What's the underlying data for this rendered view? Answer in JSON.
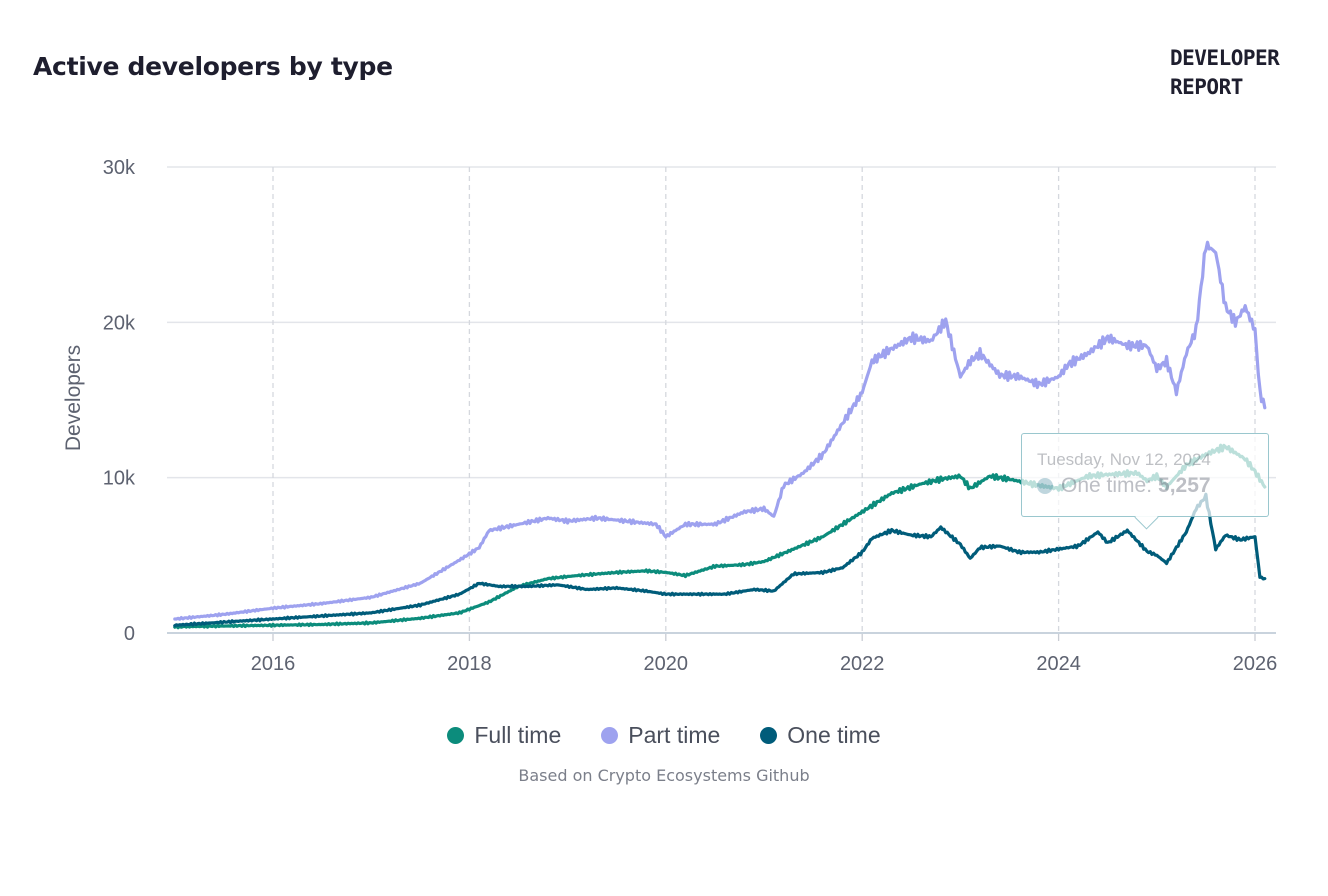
{
  "header": {
    "title": "Active developers by type",
    "brand_line1": "DEVELOPER",
    "brand_line2": "REPORT"
  },
  "footer": {
    "source": "Based on Crypto Ecosystems Github"
  },
  "tooltip": {
    "date": "Tuesday, Nov 12, 2024",
    "series": "One time:",
    "value": "5,257"
  },
  "chart_data": {
    "type": "line",
    "title": "Active developers by type",
    "xlabel": "",
    "ylabel": "Developers",
    "xlim": [
      2015.0,
      2026.1
    ],
    "ylim": [
      0,
      30000
    ],
    "x_ticks": [
      2016,
      2018,
      2020,
      2022,
      2024,
      2026
    ],
    "x_tick_labels": [
      "2016",
      "2018",
      "2020",
      "2022",
      "2024",
      "2026"
    ],
    "y_ticks": [
      0,
      10000,
      20000,
      30000
    ],
    "y_tick_labels": [
      "0",
      "10k",
      "20k",
      "30k"
    ],
    "grid": true,
    "legend_position": "bottom-center",
    "series": [
      {
        "name": "Full time",
        "color": "#0c8c7c",
        "points": [
          [
            2015.0,
            400
          ],
          [
            2015.5,
            450
          ],
          [
            2016.0,
            500
          ],
          [
            2016.5,
            550
          ],
          [
            2017.0,
            650
          ],
          [
            2017.5,
            950
          ],
          [
            2017.9,
            1300
          ],
          [
            2018.2,
            2000
          ],
          [
            2018.5,
            3000
          ],
          [
            2018.8,
            3500
          ],
          [
            2019.1,
            3700
          ],
          [
            2019.5,
            3900
          ],
          [
            2019.8,
            4000
          ],
          [
            2020.0,
            3900
          ],
          [
            2020.2,
            3700
          ],
          [
            2020.5,
            4300
          ],
          [
            2020.8,
            4400
          ],
          [
            2021.0,
            4600
          ],
          [
            2021.3,
            5400
          ],
          [
            2021.6,
            6200
          ],
          [
            2021.9,
            7400
          ],
          [
            2022.1,
            8200
          ],
          [
            2022.3,
            9000
          ],
          [
            2022.6,
            9600
          ],
          [
            2022.8,
            9900
          ],
          [
            2023.0,
            10100
          ],
          [
            2023.1,
            9300
          ],
          [
            2023.3,
            10100
          ],
          [
            2023.5,
            9900
          ],
          [
            2023.8,
            9500
          ],
          [
            2024.0,
            9300
          ],
          [
            2024.3,
            10100
          ],
          [
            2024.5,
            10200
          ],
          [
            2024.8,
            10300
          ],
          [
            2024.9,
            9800
          ],
          [
            2025.0,
            10100
          ],
          [
            2025.1,
            9400
          ],
          [
            2025.3,
            10800
          ],
          [
            2025.5,
            11500
          ],
          [
            2025.7,
            12000
          ],
          [
            2025.9,
            11200
          ],
          [
            2026.0,
            10400
          ],
          [
            2026.1,
            9400
          ]
        ]
      },
      {
        "name": "Part time",
        "color": "#9ea2ef",
        "points": [
          [
            2015.0,
            900
          ],
          [
            2015.5,
            1200
          ],
          [
            2016.0,
            1600
          ],
          [
            2016.5,
            1900
          ],
          [
            2017.0,
            2300
          ],
          [
            2017.5,
            3200
          ],
          [
            2017.9,
            4700
          ],
          [
            2018.1,
            5500
          ],
          [
            2018.2,
            6600
          ],
          [
            2018.5,
            7000
          ],
          [
            2018.8,
            7400
          ],
          [
            2019.0,
            7200
          ],
          [
            2019.3,
            7400
          ],
          [
            2019.6,
            7200
          ],
          [
            2019.9,
            7000
          ],
          [
            2020.0,
            6200
          ],
          [
            2020.2,
            7000
          ],
          [
            2020.5,
            7000
          ],
          [
            2020.8,
            7800
          ],
          [
            2021.0,
            8000
          ],
          [
            2021.1,
            7500
          ],
          [
            2021.2,
            9500
          ],
          [
            2021.4,
            10300
          ],
          [
            2021.6,
            11500
          ],
          [
            2021.8,
            13500
          ],
          [
            2022.0,
            15500
          ],
          [
            2022.1,
            17500
          ],
          [
            2022.3,
            18300
          ],
          [
            2022.5,
            19000
          ],
          [
            2022.7,
            18800
          ],
          [
            2022.85,
            20100
          ],
          [
            2023.0,
            16500
          ],
          [
            2023.1,
            17500
          ],
          [
            2023.2,
            18000
          ],
          [
            2023.4,
            16600
          ],
          [
            2023.6,
            16500
          ],
          [
            2023.8,
            16000
          ],
          [
            2024.0,
            16500
          ],
          [
            2024.1,
            17300
          ],
          [
            2024.3,
            18000
          ],
          [
            2024.5,
            19000
          ],
          [
            2024.7,
            18500
          ],
          [
            2024.9,
            18500
          ],
          [
            2025.0,
            17000
          ],
          [
            2025.1,
            17500
          ],
          [
            2025.2,
            15500
          ],
          [
            2025.3,
            18000
          ],
          [
            2025.4,
            19500
          ],
          [
            2025.5,
            25000
          ],
          [
            2025.6,
            24500
          ],
          [
            2025.7,
            21000
          ],
          [
            2025.8,
            20000
          ],
          [
            2025.9,
            21000
          ],
          [
            2026.0,
            19500
          ],
          [
            2026.05,
            15500
          ],
          [
            2026.1,
            14500
          ]
        ]
      },
      {
        "name": "One time",
        "color": "#005c7a",
        "points": [
          [
            2015.0,
            500
          ],
          [
            2015.5,
            700
          ],
          [
            2016.0,
            900
          ],
          [
            2016.5,
            1100
          ],
          [
            2017.0,
            1300
          ],
          [
            2017.5,
            1800
          ],
          [
            2017.9,
            2500
          ],
          [
            2018.1,
            3200
          ],
          [
            2018.3,
            3000
          ],
          [
            2018.6,
            3000
          ],
          [
            2018.9,
            3100
          ],
          [
            2019.2,
            2800
          ],
          [
            2019.5,
            2900
          ],
          [
            2019.8,
            2700
          ],
          [
            2020.0,
            2500
          ],
          [
            2020.3,
            2500
          ],
          [
            2020.6,
            2500
          ],
          [
            2020.9,
            2800
          ],
          [
            2021.1,
            2700
          ],
          [
            2021.3,
            3800
          ],
          [
            2021.6,
            3900
          ],
          [
            2021.8,
            4200
          ],
          [
            2022.0,
            5200
          ],
          [
            2022.1,
            6100
          ],
          [
            2022.3,
            6600
          ],
          [
            2022.5,
            6300
          ],
          [
            2022.7,
            6200
          ],
          [
            2022.8,
            6800
          ],
          [
            2023.0,
            5700
          ],
          [
            2023.1,
            4800
          ],
          [
            2023.2,
            5500
          ],
          [
            2023.4,
            5600
          ],
          [
            2023.6,
            5200
          ],
          [
            2023.8,
            5200
          ],
          [
            2024.0,
            5400
          ],
          [
            2024.2,
            5600
          ],
          [
            2024.4,
            6500
          ],
          [
            2024.5,
            5800
          ],
          [
            2024.7,
            6600
          ],
          [
            2024.9,
            5257
          ],
          [
            2025.0,
            5000
          ],
          [
            2025.1,
            4500
          ],
          [
            2025.3,
            6500
          ],
          [
            2025.4,
            8000
          ],
          [
            2025.5,
            8800
          ],
          [
            2025.6,
            5400
          ],
          [
            2025.7,
            6300
          ],
          [
            2025.85,
            6000
          ],
          [
            2026.0,
            6200
          ],
          [
            2026.05,
            3600
          ],
          [
            2026.1,
            3500
          ]
        ]
      }
    ]
  }
}
